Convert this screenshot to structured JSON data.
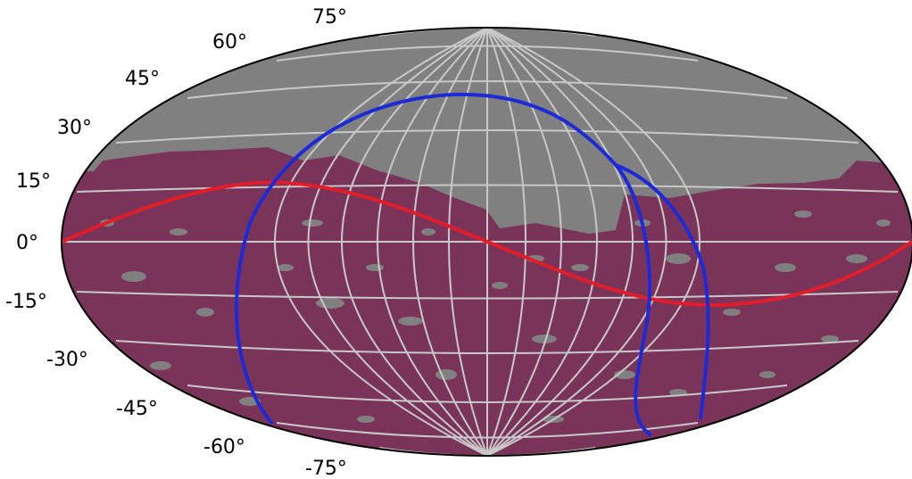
{
  "map": {
    "projection": "hammer-aitoff",
    "colors": {
      "background": "#808080",
      "coverage": "#7a345a",
      "grid": "#c8c8c8",
      "ecliptic": "#e21d2a",
      "galactic_plane": "#1d2ad8",
      "outline": "#000000"
    }
  },
  "latitude_labels": {
    "p75": "75°",
    "p60": "60°",
    "p45": "45°",
    "p30": "30°",
    "p15": "15°",
    "z0": "0°",
    "m15": "-15°",
    "m30": "-30°",
    "m45": "-45°",
    "m60": "-60°",
    "m75": "-75°"
  }
}
